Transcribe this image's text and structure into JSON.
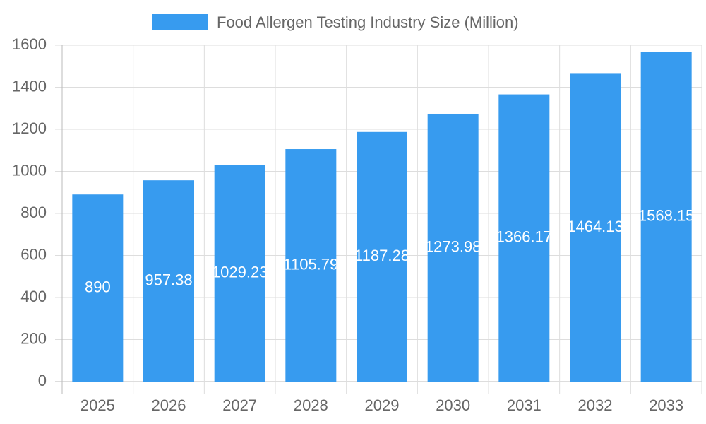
{
  "chart_data": {
    "type": "bar",
    "categories": [
      "2025",
      "2026",
      "2027",
      "2028",
      "2029",
      "2030",
      "2031",
      "2032",
      "2033"
    ],
    "series": [
      {
        "name": "Food Allergen Testing Industry Size (Million)",
        "color": "#379bef",
        "values": [
          890,
          957.38,
          1029.23,
          1105.79,
          1187.28,
          1273.98,
          1366.17,
          1464.13,
          1568.15
        ]
      }
    ],
    "ylim": [
      0,
      1600
    ],
    "yticks": [
      0,
      200,
      400,
      600,
      800,
      1000,
      1200,
      1400,
      1600
    ],
    "grid": true,
    "legend": "top"
  }
}
